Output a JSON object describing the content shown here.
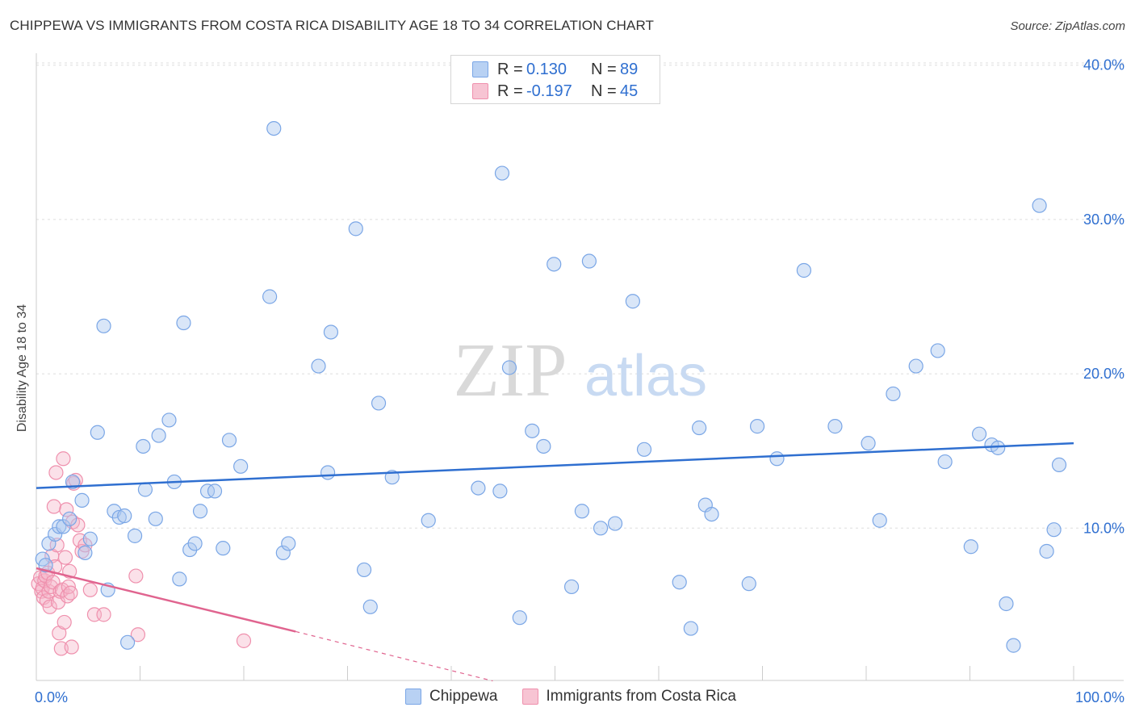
{
  "title": "CHIPPEWA VS IMMIGRANTS FROM COSTA RICA DISABILITY AGE 18 TO 34 CORRELATION CHART",
  "source": "Source: ZipAtlas.com",
  "watermark": {
    "zip": "ZIP",
    "atlas": "atlas"
  },
  "legend_top": [
    {
      "r_label": "R =",
      "r_value": "0.130",
      "n_label": "N =",
      "n_value": "89"
    },
    {
      "r_label": "R =",
      "r_value": "-0.197",
      "n_label": "N =",
      "n_value": "45"
    }
  ],
  "colors": {
    "chippewa": "#2f6fd0",
    "costa_rica": "#e0648f",
    "axis_text": "#2f6fd0"
  },
  "chart_data": {
    "type": "scatter",
    "title": "CHIPPEWA VS IMMIGRANTS FROM COSTA RICA DISABILITY AGE 18 TO 34 CORRELATION CHART",
    "xlabel": "",
    "ylabel": "Disability Age 18 to 34",
    "xlim": [
      0,
      100
    ],
    "ylim": [
      0,
      42
    ],
    "x_tick_labels": [
      "0.0%",
      "100.0%"
    ],
    "y_ticks": [
      10,
      20,
      30,
      40
    ],
    "y_tick_labels": [
      "10.0%",
      "20.0%",
      "30.0%",
      "40.0%"
    ],
    "grid": true,
    "legend": "bottom-center",
    "series": [
      {
        "name": "Chippewa",
        "r": 0.13,
        "n": 89,
        "trend": {
          "x0": 0,
          "y0": 12.6,
          "x1": 100,
          "y1": 15.5
        },
        "points": [
          [
            0.6,
            8.0
          ],
          [
            1.2,
            9.0
          ],
          [
            1.8,
            9.6
          ],
          [
            2.2,
            10.1
          ],
          [
            2.6,
            10.1
          ],
          [
            3.2,
            10.6
          ],
          [
            3.5,
            13.0
          ],
          [
            4.4,
            11.8
          ],
          [
            4.7,
            8.4
          ],
          [
            5.2,
            9.3
          ],
          [
            5.9,
            16.2
          ],
          [
            6.5,
            23.1
          ],
          [
            6.9,
            6.0
          ],
          [
            7.5,
            11.1
          ],
          [
            8.0,
            10.7
          ],
          [
            8.5,
            10.8
          ],
          [
            8.8,
            2.6
          ],
          [
            9.5,
            9.5
          ],
          [
            10.3,
            15.3
          ],
          [
            10.5,
            12.5
          ],
          [
            11.5,
            10.6
          ],
          [
            11.8,
            16.0
          ],
          [
            12.8,
            17.0
          ],
          [
            13.3,
            13.0
          ],
          [
            13.8,
            6.7
          ],
          [
            14.2,
            23.3
          ],
          [
            14.8,
            8.6
          ],
          [
            15.3,
            9.0
          ],
          [
            15.8,
            11.1
          ],
          [
            16.5,
            12.4
          ],
          [
            17.2,
            12.4
          ],
          [
            18.0,
            8.7
          ],
          [
            18.6,
            15.7
          ],
          [
            19.7,
            14.0
          ],
          [
            22.5,
            25.0
          ],
          [
            22.9,
            35.9
          ],
          [
            23.8,
            8.4
          ],
          [
            24.3,
            9.0
          ],
          [
            27.2,
            20.5
          ],
          [
            28.1,
            13.6
          ],
          [
            28.4,
            22.7
          ],
          [
            30.8,
            29.4
          ],
          [
            31.6,
            7.3
          ],
          [
            32.2,
            4.9
          ],
          [
            33.0,
            18.1
          ],
          [
            34.3,
            13.3
          ],
          [
            37.8,
            10.5
          ],
          [
            42.6,
            12.6
          ],
          [
            44.7,
            12.4
          ],
          [
            44.9,
            33.0
          ],
          [
            45.6,
            20.4
          ],
          [
            46.6,
            4.2
          ],
          [
            47.8,
            16.3
          ],
          [
            48.9,
            15.3
          ],
          [
            49.9,
            27.1
          ],
          [
            51.6,
            6.2
          ],
          [
            52.6,
            11.1
          ],
          [
            53.3,
            27.3
          ],
          [
            54.4,
            10.0
          ],
          [
            55.8,
            10.3
          ],
          [
            57.5,
            24.7
          ],
          [
            58.6,
            15.1
          ],
          [
            62.0,
            6.5
          ],
          [
            63.1,
            3.5
          ],
          [
            63.9,
            16.5
          ],
          [
            64.5,
            11.5
          ],
          [
            65.1,
            10.9
          ],
          [
            68.7,
            6.4
          ],
          [
            69.5,
            16.6
          ],
          [
            71.4,
            14.5
          ],
          [
            74.0,
            26.7
          ],
          [
            77.0,
            16.6
          ],
          [
            80.2,
            15.5
          ],
          [
            81.3,
            10.5
          ],
          [
            82.6,
            18.7
          ],
          [
            84.8,
            20.5
          ],
          [
            86.9,
            21.5
          ],
          [
            87.6,
            14.3
          ],
          [
            90.1,
            8.8
          ],
          [
            90.9,
            16.1
          ],
          [
            92.1,
            15.4
          ],
          [
            92.7,
            15.2
          ],
          [
            93.5,
            5.1
          ],
          [
            94.2,
            2.4
          ],
          [
            96.7,
            30.9
          ],
          [
            97.4,
            8.5
          ],
          [
            98.1,
            9.9
          ],
          [
            98.6,
            14.1
          ],
          [
            0.9,
            7.6
          ]
        ]
      },
      {
        "name": "Immigrants from Costa Rica",
        "r": -0.197,
        "n": 45,
        "trend": {
          "x0": 0,
          "y0": 7.4,
          "x1": 25,
          "y1": 3.3,
          "dash_x1": 44,
          "dash_y1": 0.1
        },
        "points": [
          [
            0.2,
            6.4
          ],
          [
            0.4,
            6.8
          ],
          [
            0.5,
            5.9
          ],
          [
            0.6,
            6.1
          ],
          [
            0.7,
            5.5
          ],
          [
            0.8,
            6.6
          ],
          [
            0.9,
            6.9
          ],
          [
            1.0,
            5.3
          ],
          [
            1.1,
            7.1
          ],
          [
            1.2,
            5.9
          ],
          [
            1.3,
            4.9
          ],
          [
            1.4,
            6.2
          ],
          [
            1.5,
            8.2
          ],
          [
            1.6,
            6.5
          ],
          [
            1.7,
            11.4
          ],
          [
            1.8,
            7.5
          ],
          [
            1.9,
            13.6
          ],
          [
            2.0,
            8.9
          ],
          [
            2.1,
            5.2
          ],
          [
            2.2,
            3.2
          ],
          [
            2.3,
            5.9
          ],
          [
            2.4,
            2.2
          ],
          [
            2.5,
            6.0
          ],
          [
            2.6,
            14.5
          ],
          [
            2.7,
            3.9
          ],
          [
            2.8,
            8.1
          ],
          [
            2.9,
            11.2
          ],
          [
            3.0,
            5.6
          ],
          [
            3.1,
            6.2
          ],
          [
            3.2,
            7.2
          ],
          [
            3.3,
            5.8
          ],
          [
            3.4,
            2.3
          ],
          [
            3.5,
            10.4
          ],
          [
            3.6,
            12.9
          ],
          [
            3.8,
            13.1
          ],
          [
            4.0,
            10.2
          ],
          [
            4.2,
            9.2
          ],
          [
            4.4,
            8.5
          ],
          [
            4.7,
            8.9
          ],
          [
            5.2,
            6.0
          ],
          [
            5.6,
            4.4
          ],
          [
            6.5,
            4.4
          ],
          [
            9.6,
            6.9
          ],
          [
            9.8,
            3.1
          ],
          [
            20.0,
            2.7
          ]
        ]
      }
    ]
  }
}
